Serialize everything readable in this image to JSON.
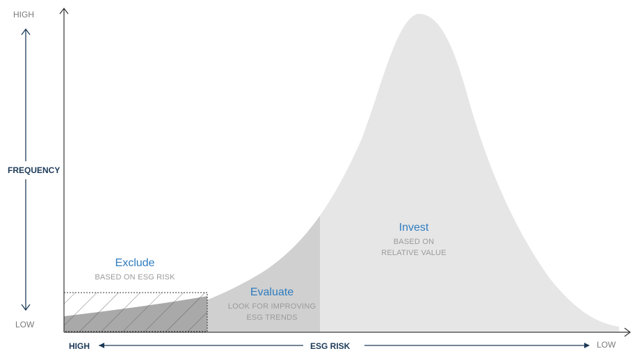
{
  "y_axis": {
    "high_label": "HIGH",
    "title": "FREQUENCY",
    "low_label": "LOW"
  },
  "x_axis": {
    "high_label": "HIGH",
    "title": "ESG RISK",
    "low_label": "LOW"
  },
  "zones": {
    "exclude": {
      "title": "Exclude",
      "subtitle": "BASED ON ESG RISK"
    },
    "evaluate": {
      "title": "Evaluate",
      "subtitle_line1": "LOOK FOR IMPROVING",
      "subtitle_line2": "ESG TRENDS"
    },
    "invest": {
      "title": "Invest",
      "subtitle_line1": "BASED ON",
      "subtitle_line2": "RELATIVE VALUE"
    }
  },
  "colors": {
    "axis_arrow": "#1c3a57",
    "zone_title": "#2e7cc0",
    "curve_fill_light": "#e6e6e6",
    "curve_fill_mid": "#d2d2d2",
    "curve_fill_dark": "#bdbdbd"
  }
}
